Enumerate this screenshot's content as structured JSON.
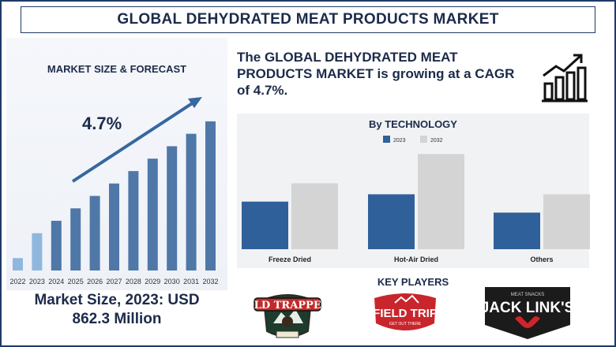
{
  "header": {
    "title": "GLOBAL DEHYDRATED MEAT PRODUCTS MARKET"
  },
  "left": {
    "title": "MARKET SIZE & FORECAST",
    "cagr_label": "4.7%",
    "market_size_line1": "Market Size, 2023: USD",
    "market_size_line2": "862.3 Million"
  },
  "right": {
    "growth_text": "The GLOBAL DEHYDRATED MEAT PRODUCTS MARKET is growing at a CAGR of 4.7%.",
    "tech_title": "By TECHNOLOGY",
    "key_players_title": "KEY PLAYERS"
  },
  "colors": {
    "navy": "#1f3a68",
    "bar_dark": "#30609a",
    "bar_light_blue": "#8fb7de",
    "bar_gray": "#d4d4d4",
    "arrow": "#36679f"
  },
  "logos": [
    {
      "name": "OLD TRAPPER",
      "icon": "bear-emblem-logo"
    },
    {
      "name": "FIELD TRIP",
      "sub": "GET OUT THERE",
      "icon": "mountain-badge-logo"
    },
    {
      "name": "JACK LINK'S",
      "sub": "MEAT SNACKS",
      "icon": "bull-head-logo"
    }
  ],
  "chart_data": [
    {
      "type": "bar",
      "title": "MARKET SIZE & FORECAST",
      "categories": [
        "2022",
        "2023",
        "2024",
        "2025",
        "2026",
        "2027",
        "2028",
        "2029",
        "2030",
        "2031",
        "2032"
      ],
      "values": [
        1.0,
        3.0,
        4.0,
        5.0,
        6.0,
        7.0,
        8.0,
        9.0,
        10.0,
        11.0,
        12.0
      ],
      "ylim": [
        0,
        12.5
      ],
      "annotation": "4.7%",
      "grid": false,
      "highlight_categories": [
        "2022",
        "2023"
      ]
    },
    {
      "type": "bar",
      "title": "By TECHNOLOGY",
      "categories": [
        "Freeze Dried",
        "Hot-Air Dried",
        "Others"
      ],
      "series": [
        {
          "name": "2023",
          "values": [
            65,
            75,
            50
          ]
        },
        {
          "name": "2032",
          "values": [
            90,
            130,
            75
          ]
        }
      ],
      "ylim": [
        0,
        140
      ],
      "legend": "top-center",
      "grid": false
    }
  ]
}
